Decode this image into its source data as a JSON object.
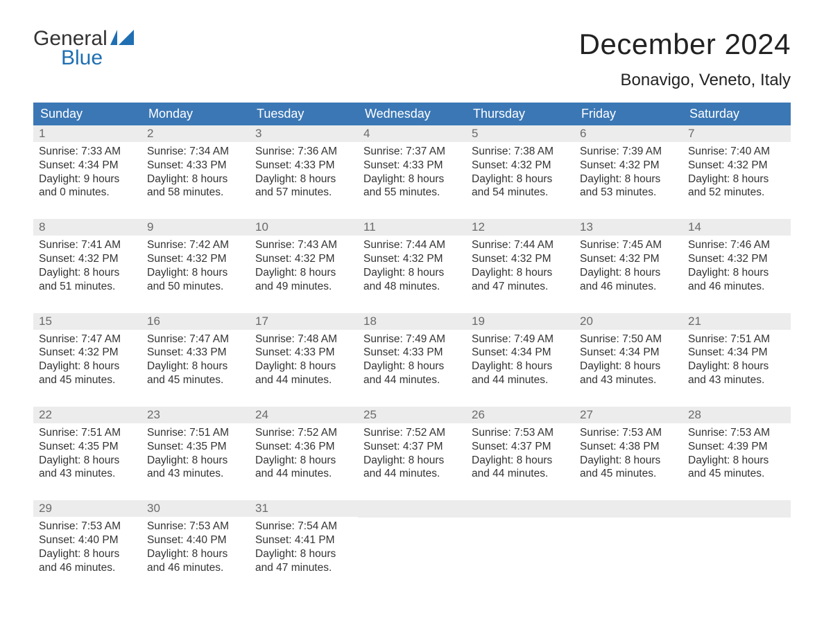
{
  "logo": {
    "line1": "General",
    "line2": "Blue",
    "flag_color": "#1f6fb2"
  },
  "title": "December 2024",
  "location": "Bonavigo, Veneto, Italy",
  "colors": {
    "header_bg": "#3b77b5",
    "header_text": "#ffffff",
    "daynum_bg": "#ececec",
    "daynum_text": "#6a6a6a",
    "body_text": "#333333",
    "rule": "#3b77b5"
  },
  "day_headers": [
    "Sunday",
    "Monday",
    "Tuesday",
    "Wednesday",
    "Thursday",
    "Friday",
    "Saturday"
  ],
  "labels": {
    "sunrise": "Sunrise:",
    "sunset": "Sunset:",
    "daylight": "Daylight:"
  },
  "weeks": [
    [
      {
        "n": "1",
        "sunrise": "7:33 AM",
        "sunset": "4:34 PM",
        "dl1": "9 hours",
        "dl2": "and 0 minutes."
      },
      {
        "n": "2",
        "sunrise": "7:34 AM",
        "sunset": "4:33 PM",
        "dl1": "8 hours",
        "dl2": "and 58 minutes."
      },
      {
        "n": "3",
        "sunrise": "7:36 AM",
        "sunset": "4:33 PM",
        "dl1": "8 hours",
        "dl2": "and 57 minutes."
      },
      {
        "n": "4",
        "sunrise": "7:37 AM",
        "sunset": "4:33 PM",
        "dl1": "8 hours",
        "dl2": "and 55 minutes."
      },
      {
        "n": "5",
        "sunrise": "7:38 AM",
        "sunset": "4:32 PM",
        "dl1": "8 hours",
        "dl2": "and 54 minutes."
      },
      {
        "n": "6",
        "sunrise": "7:39 AM",
        "sunset": "4:32 PM",
        "dl1": "8 hours",
        "dl2": "and 53 minutes."
      },
      {
        "n": "7",
        "sunrise": "7:40 AM",
        "sunset": "4:32 PM",
        "dl1": "8 hours",
        "dl2": "and 52 minutes."
      }
    ],
    [
      {
        "n": "8",
        "sunrise": "7:41 AM",
        "sunset": "4:32 PM",
        "dl1": "8 hours",
        "dl2": "and 51 minutes."
      },
      {
        "n": "9",
        "sunrise": "7:42 AM",
        "sunset": "4:32 PM",
        "dl1": "8 hours",
        "dl2": "and 50 minutes."
      },
      {
        "n": "10",
        "sunrise": "7:43 AM",
        "sunset": "4:32 PM",
        "dl1": "8 hours",
        "dl2": "and 49 minutes."
      },
      {
        "n": "11",
        "sunrise": "7:44 AM",
        "sunset": "4:32 PM",
        "dl1": "8 hours",
        "dl2": "and 48 minutes."
      },
      {
        "n": "12",
        "sunrise": "7:44 AM",
        "sunset": "4:32 PM",
        "dl1": "8 hours",
        "dl2": "and 47 minutes."
      },
      {
        "n": "13",
        "sunrise": "7:45 AM",
        "sunset": "4:32 PM",
        "dl1": "8 hours",
        "dl2": "and 46 minutes."
      },
      {
        "n": "14",
        "sunrise": "7:46 AM",
        "sunset": "4:32 PM",
        "dl1": "8 hours",
        "dl2": "and 46 minutes."
      }
    ],
    [
      {
        "n": "15",
        "sunrise": "7:47 AM",
        "sunset": "4:32 PM",
        "dl1": "8 hours",
        "dl2": "and 45 minutes."
      },
      {
        "n": "16",
        "sunrise": "7:47 AM",
        "sunset": "4:33 PM",
        "dl1": "8 hours",
        "dl2": "and 45 minutes."
      },
      {
        "n": "17",
        "sunrise": "7:48 AM",
        "sunset": "4:33 PM",
        "dl1": "8 hours",
        "dl2": "and 44 minutes."
      },
      {
        "n": "18",
        "sunrise": "7:49 AM",
        "sunset": "4:33 PM",
        "dl1": "8 hours",
        "dl2": "and 44 minutes."
      },
      {
        "n": "19",
        "sunrise": "7:49 AM",
        "sunset": "4:34 PM",
        "dl1": "8 hours",
        "dl2": "and 44 minutes."
      },
      {
        "n": "20",
        "sunrise": "7:50 AM",
        "sunset": "4:34 PM",
        "dl1": "8 hours",
        "dl2": "and 43 minutes."
      },
      {
        "n": "21",
        "sunrise": "7:51 AM",
        "sunset": "4:34 PM",
        "dl1": "8 hours",
        "dl2": "and 43 minutes."
      }
    ],
    [
      {
        "n": "22",
        "sunrise": "7:51 AM",
        "sunset": "4:35 PM",
        "dl1": "8 hours",
        "dl2": "and 43 minutes."
      },
      {
        "n": "23",
        "sunrise": "7:51 AM",
        "sunset": "4:35 PM",
        "dl1": "8 hours",
        "dl2": "and 43 minutes."
      },
      {
        "n": "24",
        "sunrise": "7:52 AM",
        "sunset": "4:36 PM",
        "dl1": "8 hours",
        "dl2": "and 44 minutes."
      },
      {
        "n": "25",
        "sunrise": "7:52 AM",
        "sunset": "4:37 PM",
        "dl1": "8 hours",
        "dl2": "and 44 minutes."
      },
      {
        "n": "26",
        "sunrise": "7:53 AM",
        "sunset": "4:37 PM",
        "dl1": "8 hours",
        "dl2": "and 44 minutes."
      },
      {
        "n": "27",
        "sunrise": "7:53 AM",
        "sunset": "4:38 PM",
        "dl1": "8 hours",
        "dl2": "and 45 minutes."
      },
      {
        "n": "28",
        "sunrise": "7:53 AM",
        "sunset": "4:39 PM",
        "dl1": "8 hours",
        "dl2": "and 45 minutes."
      }
    ],
    [
      {
        "n": "29",
        "sunrise": "7:53 AM",
        "sunset": "4:40 PM",
        "dl1": "8 hours",
        "dl2": "and 46 minutes."
      },
      {
        "n": "30",
        "sunrise": "7:53 AM",
        "sunset": "4:40 PM",
        "dl1": "8 hours",
        "dl2": "and 46 minutes."
      },
      {
        "n": "31",
        "sunrise": "7:54 AM",
        "sunset": "4:41 PM",
        "dl1": "8 hours",
        "dl2": "and 47 minutes."
      },
      null,
      null,
      null,
      null
    ]
  ]
}
